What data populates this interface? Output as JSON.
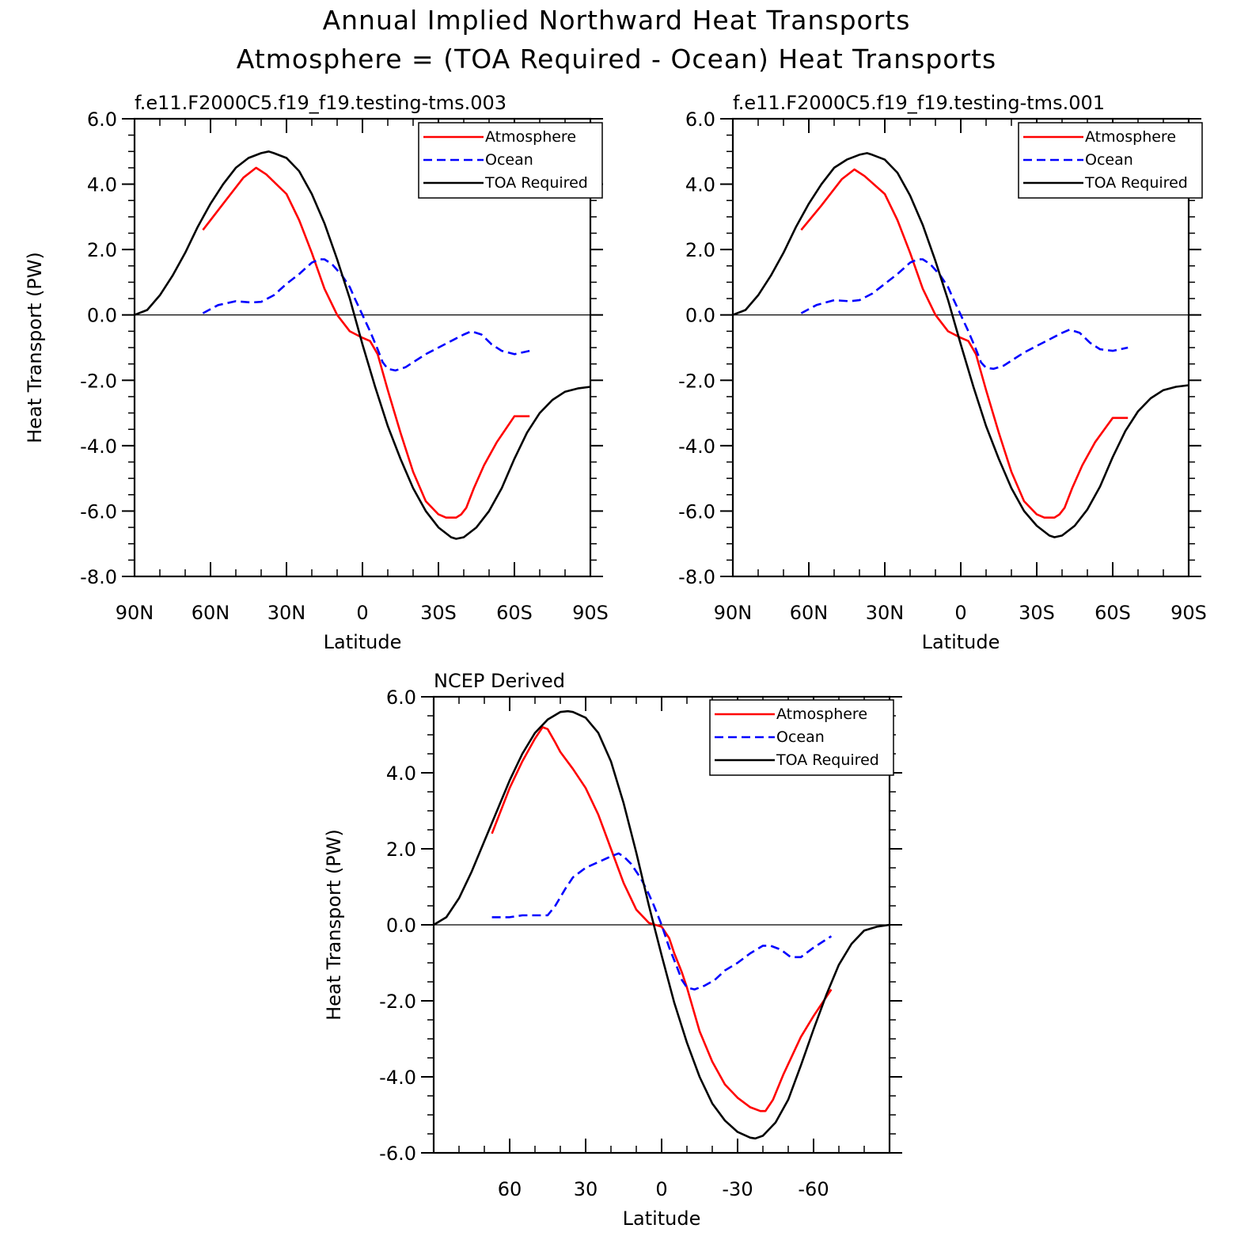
{
  "title": "Annual Implied Northward Heat Transports",
  "subtitle": "Atmosphere = (TOA Required - Ocean) Heat Transports",
  "colors": {
    "atmosphere": "#ff0000",
    "ocean": "#0000ff",
    "toa": "#000000"
  },
  "chart_data": [
    {
      "type": "line",
      "title": "f.e11.F2000C5.f19_f19.testing-tms.003",
      "xlabel": "Latitude",
      "ylabel": "Heat Transport (PW)",
      "xlim": [
        90,
        -90
      ],
      "ylim": [
        -8,
        6
      ],
      "xticks": [
        90,
        60,
        30,
        0,
        -30,
        -60,
        -90
      ],
      "xtick_labels": [
        "90N",
        "60N",
        "30N",
        "0",
        "30S",
        "60S",
        "90S"
      ],
      "yticks": [
        6,
        4,
        2,
        0,
        -2,
        -4,
        -6,
        -8
      ],
      "ytick_labels": [
        "6.0",
        "4.0",
        "2.0",
        "0.0",
        "-2.0",
        "-4.0",
        "-6.0",
        "-8.0"
      ],
      "zero_line": true,
      "legend_position": "top-right",
      "series": [
        {
          "name": "Atmosphere",
          "style": "solid",
          "x": [
            63,
            55,
            47,
            42,
            38,
            30,
            25,
            20,
            15,
            10,
            5,
            0,
            -3,
            -6,
            -10,
            -15,
            -20,
            -25,
            -30,
            -33,
            -37,
            -39,
            -41,
            -44,
            -48,
            -53,
            -60,
            -66
          ],
          "y": [
            2.6,
            3.4,
            4.2,
            4.5,
            4.3,
            3.7,
            2.9,
            1.9,
            0.8,
            0.0,
            -0.5,
            -0.7,
            -0.8,
            -1.2,
            -2.3,
            -3.6,
            -4.8,
            -5.7,
            -6.1,
            -6.2,
            -6.2,
            -6.1,
            -5.9,
            -5.3,
            -4.6,
            -3.9,
            -3.1,
            -3.1
          ]
        },
        {
          "name": "Ocean",
          "style": "dashed",
          "x": [
            63,
            57,
            50,
            44,
            40,
            35,
            30,
            25,
            20,
            17,
            15,
            12,
            8,
            5,
            3,
            0,
            -3,
            -6,
            -8,
            -10,
            -13,
            -17,
            -21,
            -25,
            -30,
            -35,
            -40,
            -43,
            -47,
            -51,
            -55,
            -60,
            -66
          ],
          "y": [
            0.05,
            0.3,
            0.42,
            0.38,
            0.4,
            0.6,
            0.95,
            1.25,
            1.6,
            1.7,
            1.7,
            1.55,
            1.2,
            0.85,
            0.5,
            0.0,
            -0.5,
            -1.05,
            -1.45,
            -1.65,
            -1.7,
            -1.6,
            -1.4,
            -1.2,
            -1.0,
            -0.8,
            -0.6,
            -0.5,
            -0.6,
            -0.9,
            -1.1,
            -1.2,
            -1.1
          ]
        },
        {
          "name": "TOA Required",
          "style": "solid",
          "x": [
            90,
            85,
            80,
            75,
            70,
            65,
            60,
            55,
            50,
            45,
            40,
            37,
            35,
            30,
            25,
            20,
            15,
            10,
            5,
            0,
            -5,
            -10,
            -15,
            -20,
            -25,
            -30,
            -35,
            -37,
            -40,
            -45,
            -50,
            -55,
            -60,
            -65,
            -70,
            -75,
            -80,
            -85,
            -90
          ],
          "y": [
            0.0,
            0.15,
            0.6,
            1.2,
            1.9,
            2.7,
            3.4,
            4.0,
            4.5,
            4.8,
            4.95,
            5.0,
            4.95,
            4.8,
            4.4,
            3.7,
            2.8,
            1.7,
            0.5,
            -0.9,
            -2.2,
            -3.4,
            -4.4,
            -5.3,
            -6.0,
            -6.5,
            -6.8,
            -6.85,
            -6.8,
            -6.5,
            -6.0,
            -5.3,
            -4.4,
            -3.6,
            -3.0,
            -2.6,
            -2.35,
            -2.25,
            -2.2
          ]
        }
      ]
    },
    {
      "type": "line",
      "title": "f.e11.F2000C5.f19_f19.testing-tms.001",
      "xlabel": "Latitude",
      "ylabel": "",
      "xlim": [
        90,
        -90
      ],
      "ylim": [
        -8,
        6
      ],
      "xticks": [
        90,
        60,
        30,
        0,
        -30,
        -60,
        -90
      ],
      "xtick_labels": [
        "90N",
        "60N",
        "30N",
        "0",
        "30S",
        "60S",
        "90S"
      ],
      "yticks": [
        6,
        4,
        2,
        0,
        -2,
        -4,
        -6,
        -8
      ],
      "ytick_labels": [
        "6.0",
        "4.0",
        "2.0",
        "0.0",
        "-2.0",
        "-4.0",
        "-6.0",
        "-8.0"
      ],
      "zero_line": true,
      "legend_position": "top-right",
      "series": [
        {
          "name": "Atmosphere",
          "style": "solid",
          "x": [
            63,
            55,
            47,
            42,
            38,
            30,
            25,
            20,
            15,
            10,
            5,
            0,
            -3,
            -6,
            -10,
            -15,
            -20,
            -25,
            -30,
            -33,
            -37,
            -39,
            -41,
            -44,
            -48,
            -53,
            -60,
            -66
          ],
          "y": [
            2.6,
            3.35,
            4.15,
            4.45,
            4.25,
            3.7,
            2.9,
            1.9,
            0.8,
            0.0,
            -0.5,
            -0.7,
            -0.8,
            -1.2,
            -2.3,
            -3.6,
            -4.8,
            -5.7,
            -6.1,
            -6.2,
            -6.2,
            -6.1,
            -5.9,
            -5.3,
            -4.6,
            -3.9,
            -3.15,
            -3.15
          ]
        },
        {
          "name": "Ocean",
          "style": "dashed",
          "x": [
            63,
            57,
            50,
            44,
            40,
            35,
            30,
            25,
            20,
            17,
            15,
            12,
            8,
            5,
            3,
            0,
            -3,
            -6,
            -8,
            -10,
            -13,
            -17,
            -21,
            -25,
            -30,
            -35,
            -40,
            -43,
            -47,
            -51,
            -55,
            -60,
            -66
          ],
          "y": [
            0.05,
            0.3,
            0.45,
            0.42,
            0.45,
            0.65,
            0.95,
            1.25,
            1.6,
            1.7,
            1.7,
            1.55,
            1.2,
            0.85,
            0.5,
            0.0,
            -0.5,
            -1.05,
            -1.45,
            -1.62,
            -1.65,
            -1.55,
            -1.35,
            -1.15,
            -0.95,
            -0.75,
            -0.55,
            -0.45,
            -0.55,
            -0.85,
            -1.05,
            -1.1,
            -1.0
          ]
        },
        {
          "name": "TOA Required",
          "style": "solid",
          "x": [
            90,
            85,
            80,
            75,
            70,
            65,
            60,
            55,
            50,
            45,
            40,
            37,
            35,
            30,
            25,
            20,
            15,
            10,
            5,
            0,
            -5,
            -10,
            -15,
            -20,
            -25,
            -30,
            -35,
            -37,
            -40,
            -45,
            -50,
            -55,
            -60,
            -65,
            -70,
            -75,
            -80,
            -85,
            -90
          ],
          "y": [
            0.0,
            0.15,
            0.6,
            1.2,
            1.9,
            2.7,
            3.4,
            4.0,
            4.5,
            4.75,
            4.9,
            4.95,
            4.9,
            4.75,
            4.35,
            3.65,
            2.75,
            1.65,
            0.45,
            -0.9,
            -2.2,
            -3.4,
            -4.4,
            -5.3,
            -6.0,
            -6.45,
            -6.75,
            -6.8,
            -6.75,
            -6.45,
            -5.95,
            -5.25,
            -4.35,
            -3.55,
            -2.95,
            -2.55,
            -2.3,
            -2.2,
            -2.15
          ]
        }
      ]
    },
    {
      "type": "line",
      "title": "NCEP Derived",
      "xlabel": "Latitude",
      "ylabel": "Heat Transport (PW)",
      "xlim": [
        90,
        -90
      ],
      "ylim": [
        -6,
        6
      ],
      "xticks": [
        60,
        30,
        0,
        -30,
        -60
      ],
      "xtick_labels": [
        "60",
        "30",
        "0",
        "-30",
        "-60"
      ],
      "yticks": [
        6,
        4,
        2,
        0,
        -2,
        -4,
        -6
      ],
      "ytick_labels": [
        "6.0",
        "4.0",
        "2.0",
        "0.0",
        "-2.0",
        "-4.0",
        "-6.0"
      ],
      "zero_line": true,
      "legend_position": "top-right",
      "series": [
        {
          "name": "Atmosphere",
          "style": "solid",
          "x": [
            67,
            60,
            55,
            50,
            47,
            45,
            42,
            40,
            35,
            30,
            25,
            20,
            15,
            10,
            5,
            0,
            -3,
            -5,
            -8,
            -10,
            -15,
            -20,
            -25,
            -30,
            -35,
            -39,
            -41,
            -44,
            -48,
            -55,
            -60,
            -67
          ],
          "y": [
            2.4,
            3.6,
            4.3,
            4.9,
            5.2,
            5.15,
            4.8,
            4.55,
            4.1,
            3.6,
            2.9,
            2.0,
            1.1,
            0.4,
            0.05,
            -0.05,
            -0.35,
            -0.75,
            -1.25,
            -1.65,
            -2.8,
            -3.6,
            -4.2,
            -4.55,
            -4.8,
            -4.9,
            -4.9,
            -4.6,
            -3.95,
            -2.95,
            -2.4,
            -1.7
          ]
        },
        {
          "name": "Ocean",
          "style": "dashed",
          "x": [
            67,
            60,
            55,
            50,
            45,
            42,
            38,
            35,
            30,
            25,
            20,
            17,
            15,
            12,
            8,
            5,
            3,
            0,
            -3,
            -6,
            -8,
            -10,
            -13,
            -17,
            -21,
            -25,
            -30,
            -35,
            -40,
            -43,
            -47,
            -51,
            -55,
            -60,
            -67
          ],
          "y": [
            0.2,
            0.2,
            0.25,
            0.25,
            0.25,
            0.5,
            0.95,
            1.25,
            1.5,
            1.65,
            1.8,
            1.88,
            1.8,
            1.6,
            1.2,
            0.8,
            0.5,
            0.0,
            -0.6,
            -1.1,
            -1.45,
            -1.65,
            -1.7,
            -1.6,
            -1.45,
            -1.2,
            -1.0,
            -0.75,
            -0.55,
            -0.55,
            -0.65,
            -0.85,
            -0.85,
            -0.6,
            -0.3
          ]
        },
        {
          "name": "TOA Required",
          "style": "solid",
          "x": [
            90,
            85,
            80,
            75,
            70,
            65,
            60,
            55,
            50,
            45,
            40,
            37,
            35,
            30,
            25,
            20,
            15,
            10,
            5,
            0,
            -5,
            -10,
            -15,
            -20,
            -25,
            -30,
            -35,
            -37,
            -40,
            -45,
            -50,
            -55,
            -60,
            -65,
            -70,
            -75,
            -80,
            -85,
            -90
          ],
          "y": [
            0.0,
            0.2,
            0.7,
            1.4,
            2.2,
            3.0,
            3.8,
            4.5,
            5.05,
            5.4,
            5.6,
            5.62,
            5.6,
            5.45,
            5.05,
            4.3,
            3.2,
            1.9,
            0.5,
            -0.8,
            -2.05,
            -3.1,
            -4.0,
            -4.7,
            -5.15,
            -5.45,
            -5.6,
            -5.62,
            -5.55,
            -5.2,
            -4.6,
            -3.7,
            -2.75,
            -1.85,
            -1.05,
            -0.5,
            -0.15,
            -0.05,
            0.0
          ]
        }
      ]
    }
  ]
}
